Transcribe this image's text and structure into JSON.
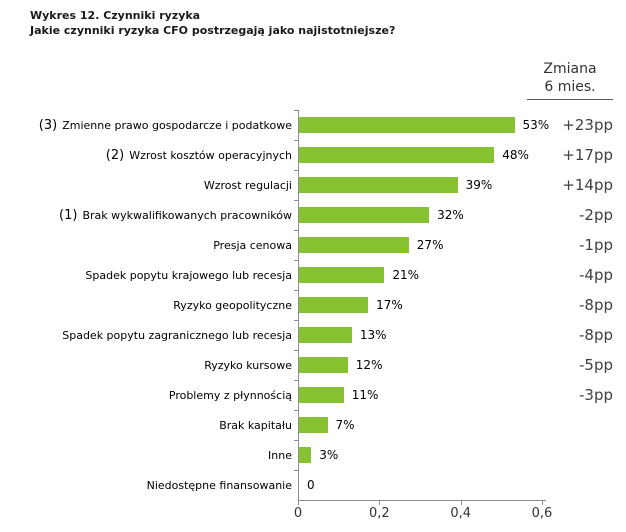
{
  "title": "Wykres 12. Czynniki ryzyka",
  "subtitle": "Jakie czynniki ryzyka CFO postrzegają jako najistotniejsze?",
  "change_header": {
    "line1": "Zmiana",
    "line2": "6 mies."
  },
  "colors": {
    "bar": "#87c232",
    "axis": "#8c8c8c",
    "title_text": "#1a1a1a",
    "label_text": "#000000",
    "change_text": "#404040"
  },
  "chart_data": {
    "type": "bar",
    "orientation": "horizontal",
    "title": "Wykres 12. Czynniki ryzyka",
    "subtitle": "Jakie czynniki ryzyka CFO postrzegają jako najistotniejsze?",
    "categories": [
      "Zmienne prawo gospodarcze i podatkowe",
      "Wzrost kosztów operacyjnych",
      "Wzrost regulacji",
      "Brak wykwalifikowanych pracowników",
      "Presja cenowa",
      "Spadek popytu krajowego lub recesja",
      "Ryzyko geopolityczne",
      "Spadek popytu zagranicznego lub recesja",
      "Ryzyko kursowe",
      "Problemy z płynnością",
      "Brak kapitału",
      "Inne",
      "Niedostępne finansowanie"
    ],
    "rank_prefixes": [
      "(3)",
      "(2)",
      "",
      "(1)",
      "",
      "",
      "",
      "",
      "",
      "",
      "",
      "",
      ""
    ],
    "values": [
      0.53,
      0.48,
      0.39,
      0.32,
      0.27,
      0.21,
      0.17,
      0.13,
      0.12,
      0.11,
      0.07,
      0.03,
      0
    ],
    "value_labels": [
      "53%",
      "48%",
      "39%",
      "32%",
      "27%",
      "21%",
      "17%",
      "13%",
      "12%",
      "11%",
      "7%",
      "3%",
      "0"
    ],
    "change_6m_labels": [
      "+23pp",
      "+17pp",
      "+14pp",
      "-2pp",
      "-1pp",
      "-4pp",
      "-8pp",
      "-8pp",
      "-5pp",
      "-3pp",
      "",
      "",
      ""
    ],
    "xlim": [
      0,
      0.6
    ],
    "x_tick_labels": [
      "0",
      "0,2",
      "0,4",
      "0,6"
    ],
    "x_tick_values": [
      0,
      0.2,
      0.4,
      0.6
    ],
    "legend": "none",
    "grid": "off"
  }
}
